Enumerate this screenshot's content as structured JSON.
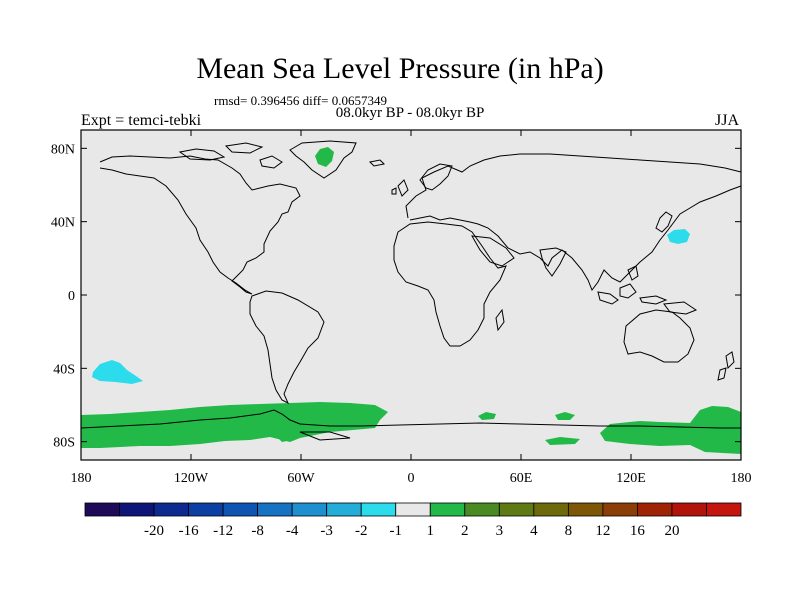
{
  "title": "Mean Sea Level Pressure (in hPa)",
  "stats": "rmsd= 0.396456 diff= 0.0657349",
  "period": "08.0kyr BP - 08.0kyr BP",
  "experiment": "Expt = temci-tebki",
  "season": "JJA",
  "map": {
    "x_ticks": [
      "180",
      "120W",
      "60W",
      "0",
      "60E",
      "120E",
      "180"
    ],
    "y_ticks": [
      "80N",
      "40N",
      "0",
      "40S",
      "80S"
    ],
    "ocean_color": "#e8e8e8",
    "coast_color": "#000000"
  },
  "colorbar": {
    "colors": [
      "#1f0a5a",
      "#0f1479",
      "#0c2a8f",
      "#0b3fa3",
      "#0e55b3",
      "#1673c4",
      "#1e90cf",
      "#25add9",
      "#2cdcec",
      "#e8e8e8",
      "#22b948",
      "#4a8a22",
      "#5f7a14",
      "#6d6a0c",
      "#7d5608",
      "#8c3e08",
      "#9f2406",
      "#b2140b",
      "#c5150f"
    ],
    "labels": [
      "-20",
      "-16",
      "-12",
      "-8",
      "-4",
      "-3",
      "-2",
      "-1",
      "1",
      "2",
      "3",
      "4",
      "8",
      "12",
      "16",
      "20"
    ]
  }
}
